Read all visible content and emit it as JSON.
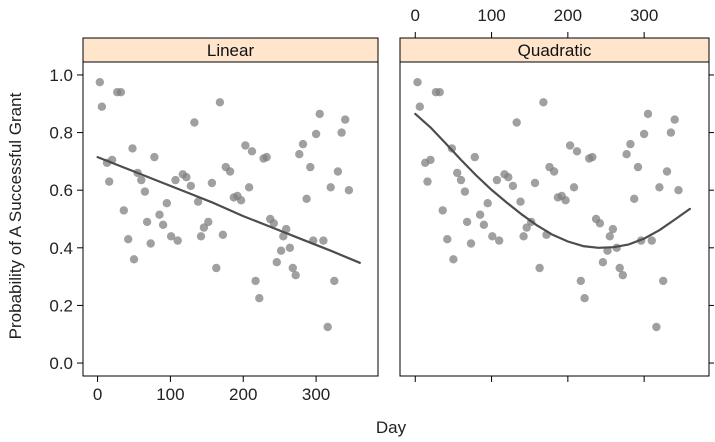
{
  "chart_data": {
    "type": "scatter",
    "xlabel": "Day",
    "ylabel": "Probability of A Successful Grant",
    "xlim": [
      -20,
      385
    ],
    "ylim": [
      -0.045,
      1.045
    ],
    "x_ticks": [
      0,
      100,
      200,
      300
    ],
    "x_tick_labels": [
      "0",
      "100",
      "200",
      "300"
    ],
    "y_ticks": [
      0.0,
      0.2,
      0.4,
      0.6,
      0.8,
      1.0
    ],
    "y_tick_labels": [
      "0.0",
      "0.2",
      "0.4",
      "0.6",
      "0.8",
      "1.0"
    ],
    "strip_color": "#ffe5cc",
    "point_color": "#808080",
    "line_color": "#4d4d4d",
    "points": [
      {
        "x": 3,
        "y": 0.975
      },
      {
        "x": 6,
        "y": 0.89
      },
      {
        "x": 13,
        "y": 0.695
      },
      {
        "x": 16,
        "y": 0.63
      },
      {
        "x": 20,
        "y": 0.705
      },
      {
        "x": 27,
        "y": 0.94
      },
      {
        "x": 32,
        "y": 0.94
      },
      {
        "x": 36,
        "y": 0.53
      },
      {
        "x": 42,
        "y": 0.43
      },
      {
        "x": 48,
        "y": 0.745
      },
      {
        "x": 50,
        "y": 0.36
      },
      {
        "x": 55,
        "y": 0.66
      },
      {
        "x": 60,
        "y": 0.635
      },
      {
        "x": 65,
        "y": 0.595
      },
      {
        "x": 68,
        "y": 0.49
      },
      {
        "x": 73,
        "y": 0.415
      },
      {
        "x": 78,
        "y": 0.715
      },
      {
        "x": 85,
        "y": 0.515
      },
      {
        "x": 90,
        "y": 0.48
      },
      {
        "x": 95,
        "y": 0.555
      },
      {
        "x": 101,
        "y": 0.44
      },
      {
        "x": 107,
        "y": 0.635
      },
      {
        "x": 110,
        "y": 0.425
      },
      {
        "x": 117,
        "y": 0.655
      },
      {
        "x": 122,
        "y": 0.645
      },
      {
        "x": 128,
        "y": 0.615
      },
      {
        "x": 133,
        "y": 0.835
      },
      {
        "x": 138,
        "y": 0.56
      },
      {
        "x": 142,
        "y": 0.44
      },
      {
        "x": 146,
        "y": 0.47
      },
      {
        "x": 152,
        "y": 0.49
      },
      {
        "x": 157,
        "y": 0.625
      },
      {
        "x": 163,
        "y": 0.33
      },
      {
        "x": 168,
        "y": 0.905
      },
      {
        "x": 172,
        "y": 0.445
      },
      {
        "x": 176,
        "y": 0.68
      },
      {
        "x": 182,
        "y": 0.665
      },
      {
        "x": 187,
        "y": 0.575
      },
      {
        "x": 192,
        "y": 0.58
      },
      {
        "x": 197,
        "y": 0.565
      },
      {
        "x": 203,
        "y": 0.755
      },
      {
        "x": 208,
        "y": 0.61
      },
      {
        "x": 212,
        "y": 0.735
      },
      {
        "x": 217,
        "y": 0.285
      },
      {
        "x": 222,
        "y": 0.225
      },
      {
        "x": 228,
        "y": 0.71
      },
      {
        "x": 232,
        "y": 0.715
      },
      {
        "x": 237,
        "y": 0.5
      },
      {
        "x": 242,
        "y": 0.485
      },
      {
        "x": 246,
        "y": 0.35
      },
      {
        "x": 252,
        "y": 0.39
      },
      {
        "x": 255,
        "y": 0.44
      },
      {
        "x": 259,
        "y": 0.465
      },
      {
        "x": 264,
        "y": 0.4
      },
      {
        "x": 268,
        "y": 0.33
      },
      {
        "x": 272,
        "y": 0.305
      },
      {
        "x": 277,
        "y": 0.725
      },
      {
        "x": 282,
        "y": 0.76
      },
      {
        "x": 287,
        "y": 0.57
      },
      {
        "x": 292,
        "y": 0.68
      },
      {
        "x": 296,
        "y": 0.425
      },
      {
        "x": 300,
        "y": 0.795
      },
      {
        "x": 305,
        "y": 0.865
      },
      {
        "x": 310,
        "y": 0.425
      },
      {
        "x": 316,
        "y": 0.125
      },
      {
        "x": 320,
        "y": 0.61
      },
      {
        "x": 325,
        "y": 0.285
      },
      {
        "x": 330,
        "y": 0.665
      },
      {
        "x": 335,
        "y": 0.8
      },
      {
        "x": 340,
        "y": 0.845
      },
      {
        "x": 345,
        "y": 0.6
      }
    ],
    "panels": [
      {
        "name": "Linear",
        "fit": {
          "x": [
            0,
            40,
            80,
            120,
            160,
            200,
            240,
            280,
            320,
            360
          ],
          "y": [
            0.715,
            0.675,
            0.635,
            0.595,
            0.555,
            0.51,
            0.47,
            0.43,
            0.39,
            0.348
          ]
        }
      },
      {
        "name": "Quadratic",
        "fit": {
          "x": [
            0,
            20,
            40,
            60,
            80,
            100,
            120,
            140,
            160,
            180,
            200,
            220,
            240,
            260,
            280,
            300,
            320,
            340,
            360
          ],
          "y": [
            0.865,
            0.818,
            0.762,
            0.705,
            0.651,
            0.601,
            0.557,
            0.515,
            0.477,
            0.445,
            0.422,
            0.406,
            0.4,
            0.402,
            0.412,
            0.432,
            0.461,
            0.498,
            0.535
          ]
        }
      }
    ]
  }
}
